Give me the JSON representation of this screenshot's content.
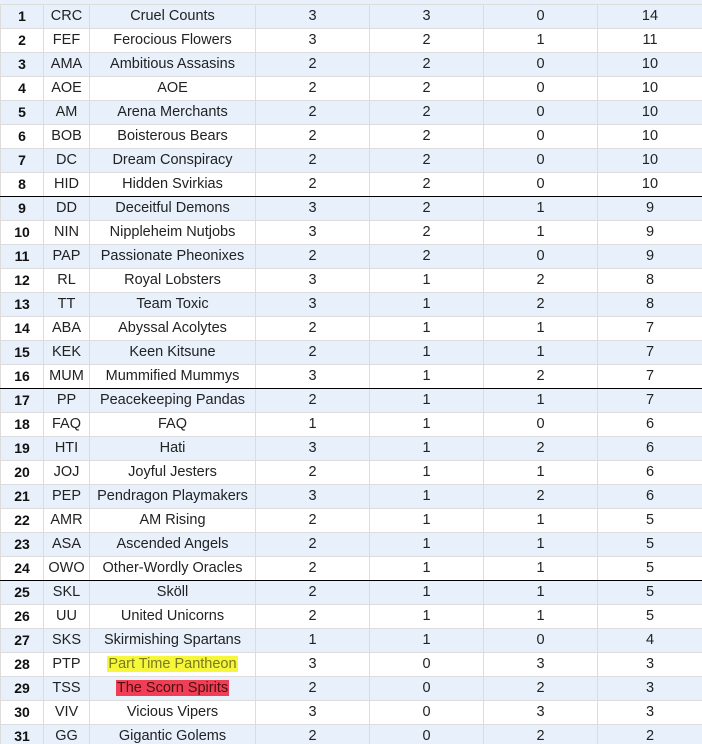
{
  "rows": [
    {
      "rank": "1",
      "abbr": "CRC",
      "name": "Cruel Counts",
      "c1": "3",
      "c2": "3",
      "c3": "0",
      "c4": "14"
    },
    {
      "rank": "2",
      "abbr": "FEF",
      "name": "Ferocious Flowers",
      "c1": "3",
      "c2": "2",
      "c3": "1",
      "c4": "11"
    },
    {
      "rank": "3",
      "abbr": "AMA",
      "name": "Ambitious Assasins",
      "c1": "2",
      "c2": "2",
      "c3": "0",
      "c4": "10"
    },
    {
      "rank": "4",
      "abbr": "AOE",
      "name": "AOE",
      "c1": "2",
      "c2": "2",
      "c3": "0",
      "c4": "10"
    },
    {
      "rank": "5",
      "abbr": "AM",
      "name": "Arena Merchants",
      "c1": "2",
      "c2": "2",
      "c3": "0",
      "c4": "10"
    },
    {
      "rank": "6",
      "abbr": "BOB",
      "name": "Boisterous Bears",
      "c1": "2",
      "c2": "2",
      "c3": "0",
      "c4": "10"
    },
    {
      "rank": "7",
      "abbr": "DC",
      "name": "Dream Conspiracy",
      "c1": "2",
      "c2": "2",
      "c3": "0",
      "c4": "10"
    },
    {
      "rank": "8",
      "abbr": "HID",
      "name": "Hidden Svirkias",
      "c1": "2",
      "c2": "2",
      "c3": "0",
      "c4": "10"
    },
    {
      "rank": "9",
      "abbr": "DD",
      "name": "Deceitful Demons",
      "c1": "3",
      "c2": "2",
      "c3": "1",
      "c4": "9"
    },
    {
      "rank": "10",
      "abbr": "NIN",
      "name": "Nippleheim Nutjobs",
      "c1": "3",
      "c2": "2",
      "c3": "1",
      "c4": "9"
    },
    {
      "rank": "11",
      "abbr": "PAP",
      "name": "Passionate Pheonixes",
      "c1": "2",
      "c2": "2",
      "c3": "0",
      "c4": "9"
    },
    {
      "rank": "12",
      "abbr": "RL",
      "name": "Royal Lobsters",
      "c1": "3",
      "c2": "1",
      "c3": "2",
      "c4": "8"
    },
    {
      "rank": "13",
      "abbr": "TT",
      "name": "Team Toxic",
      "c1": "3",
      "c2": "1",
      "c3": "2",
      "c4": "8"
    },
    {
      "rank": "14",
      "abbr": "ABA",
      "name": "Abyssal Acolytes",
      "c1": "2",
      "c2": "1",
      "c3": "1",
      "c4": "7"
    },
    {
      "rank": "15",
      "abbr": "KEK",
      "name": "Keen Kitsune",
      "c1": "2",
      "c2": "1",
      "c3": "1",
      "c4": "7"
    },
    {
      "rank": "16",
      "abbr": "MUM",
      "name": "Mummified Mummys",
      "c1": "3",
      "c2": "1",
      "c3": "2",
      "c4": "7"
    },
    {
      "rank": "17",
      "abbr": "PP",
      "name": "Peacekeeping Pandas",
      "c1": "2",
      "c2": "1",
      "c3": "1",
      "c4": "7"
    },
    {
      "rank": "18",
      "abbr": "FAQ",
      "name": "FAQ",
      "c1": "1",
      "c2": "1",
      "c3": "0",
      "c4": "6"
    },
    {
      "rank": "19",
      "abbr": "HTI",
      "name": "Hati",
      "c1": "3",
      "c2": "1",
      "c3": "2",
      "c4": "6"
    },
    {
      "rank": "20",
      "abbr": "JOJ",
      "name": "Joyful Jesters",
      "c1": "2",
      "c2": "1",
      "c3": "1",
      "c4": "6"
    },
    {
      "rank": "21",
      "abbr": "PEP",
      "name": "Pendragon Playmakers",
      "c1": "3",
      "c2": "1",
      "c3": "2",
      "c4": "6"
    },
    {
      "rank": "22",
      "abbr": "AMR",
      "name": "AM Rising",
      "c1": "2",
      "c2": "1",
      "c3": "1",
      "c4": "5"
    },
    {
      "rank": "23",
      "abbr": "ASA",
      "name": "Ascended Angels",
      "c1": "2",
      "c2": "1",
      "c3": "1",
      "c4": "5"
    },
    {
      "rank": "24",
      "abbr": "OWO",
      "name": "Other-Wordly Oracles",
      "c1": "2",
      "c2": "1",
      "c3": "1",
      "c4": "5"
    },
    {
      "rank": "25",
      "abbr": "SKL",
      "name": "Sköll",
      "c1": "2",
      "c2": "1",
      "c3": "1",
      "c4": "5"
    },
    {
      "rank": "26",
      "abbr": "UU",
      "name": "United Unicorns",
      "c1": "2",
      "c2": "1",
      "c3": "1",
      "c4": "5"
    },
    {
      "rank": "27",
      "abbr": "SKS",
      "name": "Skirmishing Spartans",
      "c1": "1",
      "c2": "1",
      "c3": "0",
      "c4": "4"
    },
    {
      "rank": "28",
      "abbr": "PTP",
      "name": "Part Time Pantheon",
      "c1": "3",
      "c2": "0",
      "c3": "3",
      "c4": "3",
      "highlight": "yellow"
    },
    {
      "rank": "29",
      "abbr": "TSS",
      "name": "The Scorn Spirits",
      "c1": "2",
      "c2": "0",
      "c3": "2",
      "c4": "3",
      "highlight": "red"
    },
    {
      "rank": "30",
      "abbr": "VIV",
      "name": "Vicious Vipers",
      "c1": "3",
      "c2": "0",
      "c3": "3",
      "c4": "3"
    },
    {
      "rank": "31",
      "abbr": "GG",
      "name": "Gigantic Golems",
      "c1": "2",
      "c2": "0",
      "c3": "2",
      "c4": "2"
    }
  ],
  "dividers_after_rank": [
    "8",
    "16",
    "24"
  ],
  "colors": {
    "stripe": "#e8f0fb",
    "highlight_yellow": "#f6f63a",
    "highlight_red": "#ef3e55"
  }
}
